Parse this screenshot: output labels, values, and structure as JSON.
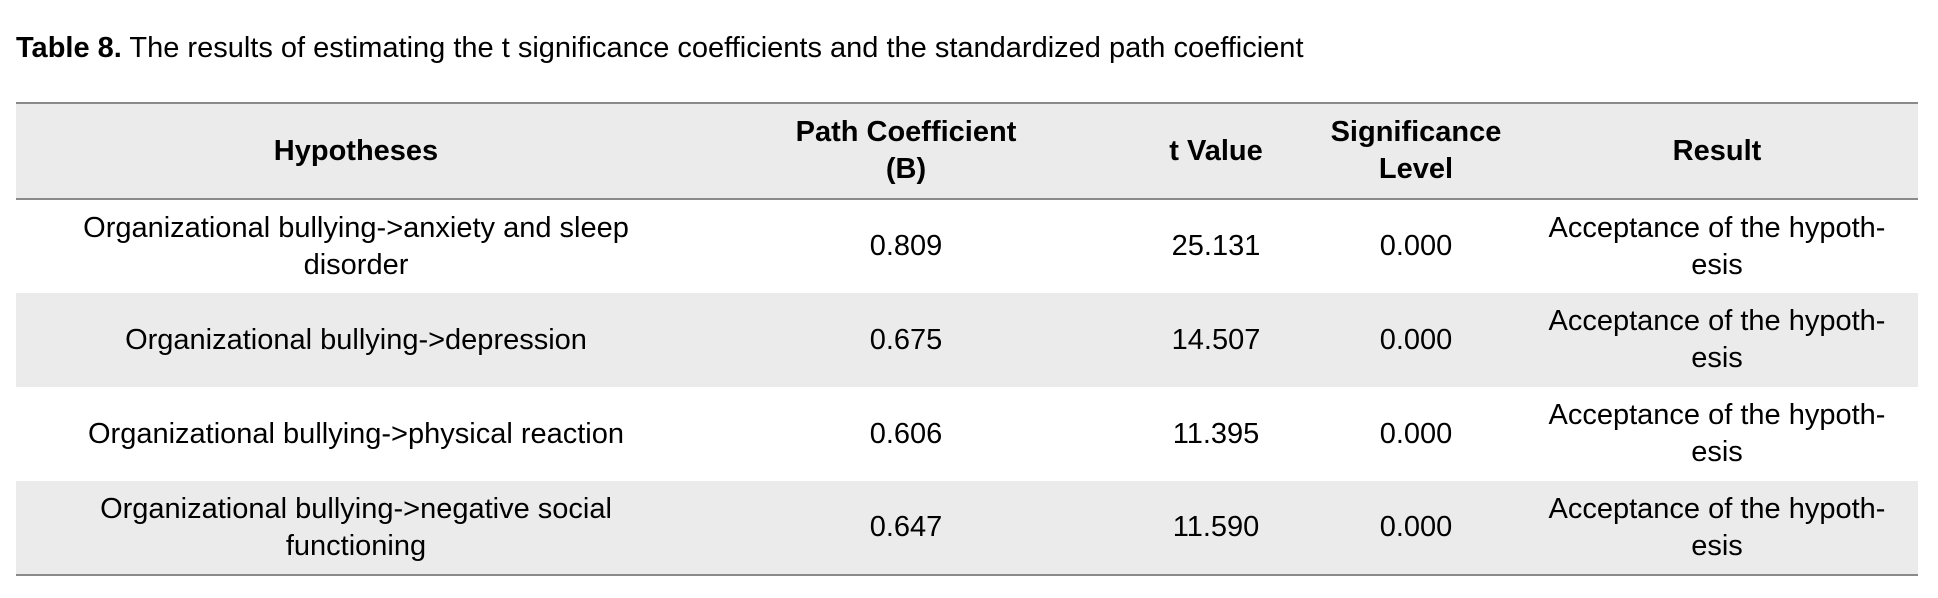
{
  "caption": {
    "label": "Table 8.",
    "text": " The results of estimating the t significance coefficients and the standardized path coefficient"
  },
  "table": {
    "headers": {
      "hypotheses": "Hypotheses",
      "path_coefficient_line1": "Path Coefficient",
      "path_coefficient_line2": "(B)",
      "t_value": "t Value",
      "significance_line1": "Significance",
      "significance_line2": "Level",
      "result": "Result"
    },
    "rows": [
      {
        "hypothesis": "Organizational bullying->anxiety and sleep disorder",
        "path_coefficient": "0.809",
        "t_value": "25.131",
        "significance": "0.000",
        "result": "Acceptance of the hypoth-esis"
      },
      {
        "hypothesis": "Organizational bullying->depression",
        "path_coefficient": "0.675",
        "t_value": "14.507",
        "significance": "0.000",
        "result": "Acceptance of the hypoth-esis"
      },
      {
        "hypothesis": "Organizational bullying->physical reaction",
        "path_coefficient": "0.606",
        "t_value": "11.395",
        "significance": "0.000",
        "result": "Acceptance of the hypoth-esis"
      },
      {
        "hypothesis": "Organizational bullying->negative social functioning",
        "path_coefficient": "0.647",
        "t_value": "11.590",
        "significance": "0.000",
        "result": "Acceptance of the hypoth-esis"
      }
    ]
  }
}
